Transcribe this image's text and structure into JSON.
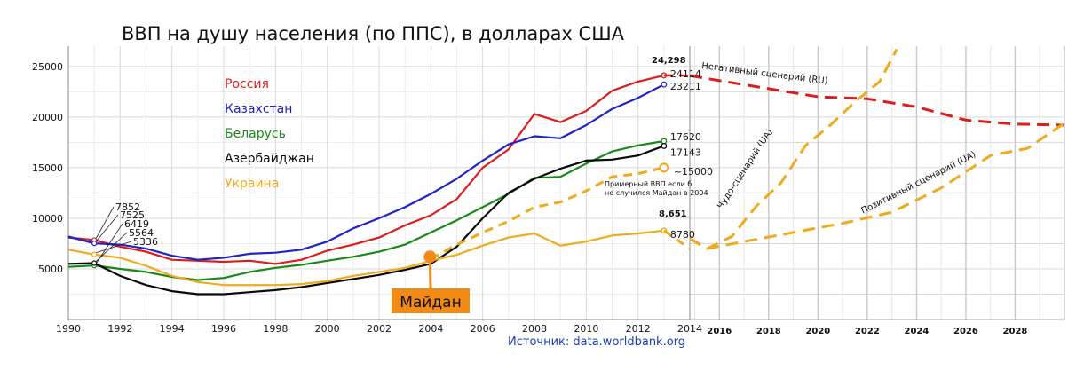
{
  "title": "ВВП на душу населения (по ППС), в долларах США",
  "source": "Источник: data.worldbank.org",
  "colors": {
    "russia": "#dd1c1c",
    "kazakhstan": "#1f23c8",
    "belarus": "#178a17",
    "azerbaijan": "#0a0a0a",
    "ukraine": "#f0aa1e",
    "maidan_box": "#f28a16",
    "grid": "#d8d8d8"
  },
  "chart_data": {
    "type": "line",
    "title": "ВВП на душу населения (по ППС), в долларах США",
    "xlabel": "",
    "ylabel": "",
    "xlim": [
      1990,
      2014
    ],
    "ylim": [
      0,
      27000
    ],
    "grid": true,
    "legend_position": "top-left",
    "x_ticks": [
      "1990",
      "1992",
      "1994",
      "1996",
      "1998",
      "2000",
      "2002",
      "2004",
      "2006",
      "2008",
      "2010",
      "2012",
      "2014"
    ],
    "y_ticks": [
      "5000",
      "10000",
      "15000",
      "20000",
      "25000"
    ],
    "x": [
      1990,
      1991,
      1992,
      1993,
      1994,
      1995,
      1996,
      1997,
      1998,
      1999,
      2000,
      2001,
      2002,
      2003,
      2004,
      2005,
      2006,
      2007,
      2008,
      2009,
      2010,
      2011,
      2012,
      2013
    ],
    "series": [
      {
        "name": "Россия",
        "color_key": "russia",
        "values": [
          8100,
          7852,
          7200,
          6700,
          5900,
          5800,
          5700,
          5800,
          5500,
          5900,
          6800,
          7400,
          8100,
          9300,
          10300,
          11900,
          15000,
          16800,
          20300,
          19500,
          20600,
          22600,
          23500,
          24114
        ]
      },
      {
        "name": "Казахстан",
        "color_key": "kazakhstan",
        "values": [
          8200,
          7525,
          7400,
          7000,
          6300,
          5900,
          6100,
          6500,
          6600,
          6900,
          7700,
          9000,
          10000,
          11100,
          12400,
          13900,
          15700,
          17300,
          18100,
          17900,
          19200,
          20800,
          21900,
          23211
        ]
      },
      {
        "name": "Беларусь",
        "color_key": "belarus",
        "values": [
          5200,
          5336,
          5000,
          4700,
          4200,
          3900,
          4100,
          4700,
          5100,
          5400,
          5800,
          6200,
          6700,
          7400,
          8600,
          9800,
          11100,
          12400,
          14000,
          14100,
          15400,
          16600,
          17200,
          17620
        ]
      },
      {
        "name": "Азербайджан",
        "color_key": "azerbaijan",
        "values": [
          5500,
          5564,
          4300,
          3400,
          2800,
          2500,
          2500,
          2700,
          2900,
          3200,
          3600,
          4000,
          4400,
          4900,
          5500,
          7200,
          10000,
          12500,
          13900,
          14900,
          15700,
          15800,
          16200,
          17143
        ]
      },
      {
        "name": "Украина",
        "color_key": "ukraine",
        "values": [
          6900,
          6419,
          6100,
          5300,
          4300,
          3700,
          3400,
          3400,
          3400,
          3500,
          3800,
          4300,
          4700,
          5100,
          5800,
          6400,
          7300,
          8100,
          8500,
          7300,
          7700,
          8300,
          8500,
          8780
        ]
      },
      {
        "name": "Примерный ВВП если б не случился Майдан в 2004",
        "color_key": "ukraine",
        "style": "dashed",
        "x": [
          2004,
          2005,
          2006,
          2007,
          2008,
          2009,
          2010,
          2011,
          2012,
          2013
        ],
        "values": [
          6000,
          7400,
          8600,
          9700,
          11100,
          11600,
          12700,
          14100,
          14400,
          15000
        ]
      }
    ],
    "end_labels": [
      {
        "key": "russia",
        "text": "24114",
        "value": 24114
      },
      {
        "key": "kazakhstan",
        "text": "23211",
        "value": 23211
      },
      {
        "key": "belarus",
        "text": "17620",
        "value": 17620
      },
      {
        "key": "azerbaijan",
        "text": "17143",
        "value": 17143
      },
      {
        "key": "ukraine",
        "text": "8780",
        "value": 8780
      },
      {
        "key": "ukraine_hypo",
        "text": "~15000",
        "value": 15000
      }
    ],
    "start_labels": [
      "7852",
      "7525",
      "6419",
      "5564",
      "5336"
    ],
    "upper_labels": [
      "24,298",
      "8,651"
    ],
    "annotations": {
      "maidan_year": 2004,
      "maidan_value": 6200,
      "maidan_label": "Майдан",
      "hypothetical_note_line1": "Примерный ВВП если б",
      "hypothetical_note_line2": "не случился Майдан в 2004"
    },
    "projection": {
      "x_ticks": [
        "2016",
        "2018",
        "2020",
        "2022",
        "2024",
        "2026",
        "2028"
      ],
      "x_range": [
        2014.8,
        2030
      ],
      "y_range": [
        0,
        27000
      ],
      "scenarios": [
        {
          "name": "Негативный сценарий (RU)",
          "color_key": "russia",
          "x": [
            2014.8,
            2016,
            2018,
            2020,
            2022,
            2024,
            2026,
            2028,
            2030
          ],
          "values": [
            24100,
            23600,
            22800,
            22000,
            21800,
            21000,
            19700,
            19300,
            19200
          ]
        },
        {
          "name": "Чудо-сценарий (UA)",
          "color_key": "ukraine",
          "x": [
            2014.8,
            2015.5,
            2016.5,
            2017.5,
            2018.5,
            2019.5,
            2020.5,
            2021.5,
            2022.5,
            2023.2
          ],
          "values": [
            8000,
            7000,
            8200,
            11200,
            13500,
            17200,
            19200,
            21500,
            23500,
            26700
          ]
        },
        {
          "name": "Позитивный сценарий (UA)",
          "color_key": "ukraine",
          "x": [
            2014.8,
            2015.5,
            2017,
            2019,
            2021,
            2023,
            2025,
            2027,
            2028.5,
            2030
          ],
          "values": [
            8000,
            7000,
            7700,
            8600,
            9500,
            10600,
            13000,
            16200,
            16900,
            19400
          ]
        }
      ]
    }
  }
}
